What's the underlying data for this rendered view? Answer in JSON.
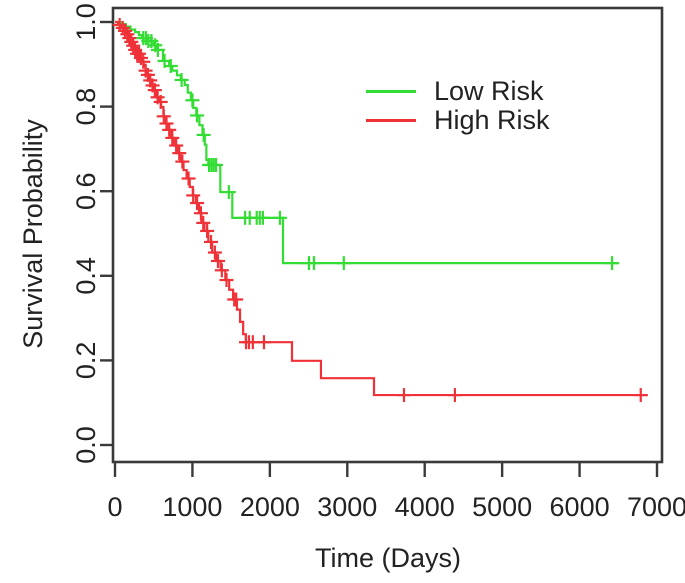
{
  "figure": {
    "background": "#ffffff",
    "axis_color": "#3a3a3a",
    "text_color": "#222222"
  },
  "chart_data": {
    "type": "line",
    "subtype": "kaplan-meier-step-curves",
    "title": "",
    "xlabel": "Time (Days)",
    "ylabel": "Survival Probability",
    "xlim": [
      0,
      7000
    ],
    "ylim": [
      0.0,
      1.0
    ],
    "grid": false,
    "x_ticks": [
      0,
      1000,
      2000,
      3000,
      4000,
      5000,
      6000,
      7000
    ],
    "x_tick_labels": [
      "0",
      "1000",
      "2000",
      "3000",
      "4000",
      "5000",
      "6000",
      "7000"
    ],
    "y_ticks": [
      0.0,
      0.2,
      0.4,
      0.6,
      0.8,
      1.0
    ],
    "y_tick_labels": [
      "0.0",
      "0.2",
      "0.4",
      "0.6",
      "0.8",
      "1.0"
    ],
    "legend": {
      "position": "upper-right-inside",
      "entries": [
        {
          "label": "Low Risk",
          "color": "#33dd33"
        },
        {
          "label": "High Risk",
          "color": "#ef3238"
        }
      ]
    },
    "series": [
      {
        "name": "Low Risk",
        "color": "#33dd33",
        "end_time": 6500,
        "steps": [
          [
            0,
            1.0
          ],
          [
            70,
            0.995
          ],
          [
            140,
            0.989
          ],
          [
            200,
            0.982
          ],
          [
            260,
            0.976
          ],
          [
            310,
            0.969
          ],
          [
            350,
            0.962
          ],
          [
            420,
            0.955
          ],
          [
            500,
            0.945
          ],
          [
            540,
            0.934
          ],
          [
            620,
            0.908
          ],
          [
            700,
            0.896
          ],
          [
            740,
            0.885
          ],
          [
            800,
            0.874
          ],
          [
            850,
            0.863
          ],
          [
            900,
            0.851
          ],
          [
            940,
            0.833
          ],
          [
            980,
            0.815
          ],
          [
            1010,
            0.797
          ],
          [
            1050,
            0.779
          ],
          [
            1090,
            0.756
          ],
          [
            1130,
            0.733
          ],
          [
            1160,
            0.71
          ],
          [
            1180,
            0.674
          ],
          [
            1205,
            0.662
          ],
          [
            1360,
            0.598
          ],
          [
            1515,
            0.537
          ],
          [
            2170,
            0.43
          ]
        ],
        "censor_times": [
          365,
          400,
          430,
          470,
          520,
          555,
          640,
          720,
          860,
          1000,
          1060,
          1145,
          1215,
          1245,
          1275,
          1305,
          1470,
          1680,
          1740,
          1830,
          1870,
          1910,
          2130,
          2505,
          2570,
          2955,
          6420
        ]
      },
      {
        "name": "High Risk",
        "color": "#ef3238",
        "end_time": 6880,
        "steps": [
          [
            0,
            1.0
          ],
          [
            40,
            0.993
          ],
          [
            75,
            0.986
          ],
          [
            105,
            0.979
          ],
          [
            135,
            0.971
          ],
          [
            165,
            0.962
          ],
          [
            195,
            0.953
          ],
          [
            225,
            0.944
          ],
          [
            255,
            0.934
          ],
          [
            285,
            0.925
          ],
          [
            315,
            0.915
          ],
          [
            340,
            0.906
          ],
          [
            370,
            0.896
          ],
          [
            395,
            0.885
          ],
          [
            420,
            0.875
          ],
          [
            450,
            0.862
          ],
          [
            475,
            0.85
          ],
          [
            505,
            0.839
          ],
          [
            535,
            0.822
          ],
          [
            565,
            0.811
          ],
          [
            595,
            0.799
          ],
          [
            625,
            0.777
          ],
          [
            655,
            0.76
          ],
          [
            685,
            0.745
          ],
          [
            725,
            0.726
          ],
          [
            765,
            0.708
          ],
          [
            805,
            0.69
          ],
          [
            845,
            0.67
          ],
          [
            885,
            0.65
          ],
          [
            925,
            0.63
          ],
          [
            965,
            0.61
          ],
          [
            1005,
            0.59
          ],
          [
            1045,
            0.572
          ],
          [
            1085,
            0.548
          ],
          [
            1115,
            0.525
          ],
          [
            1155,
            0.506
          ],
          [
            1205,
            0.48
          ],
          [
            1255,
            0.455
          ],
          [
            1305,
            0.435
          ],
          [
            1365,
            0.413
          ],
          [
            1425,
            0.39
          ],
          [
            1475,
            0.367
          ],
          [
            1525,
            0.344
          ],
          [
            1575,
            0.32
          ],
          [
            1615,
            0.291
          ],
          [
            1655,
            0.262
          ],
          [
            1690,
            0.243
          ],
          [
            2286,
            0.199
          ],
          [
            2660,
            0.158
          ],
          [
            3345,
            0.118
          ]
        ],
        "censor_times": [
          60,
          100,
          130,
          160,
          185,
          210,
          235,
          260,
          285,
          310,
          335,
          365,
          395,
          425,
          455,
          485,
          515,
          550,
          590,
          630,
          665,
          700,
          740,
          790,
          830,
          870,
          950,
          1010,
          1060,
          1110,
          1140,
          1190,
          1240,
          1290,
          1330,
          1380,
          1440,
          1540,
          1565,
          1692,
          1730,
          1780,
          1924,
          3732,
          4390,
          6790
        ]
      }
    ]
  }
}
